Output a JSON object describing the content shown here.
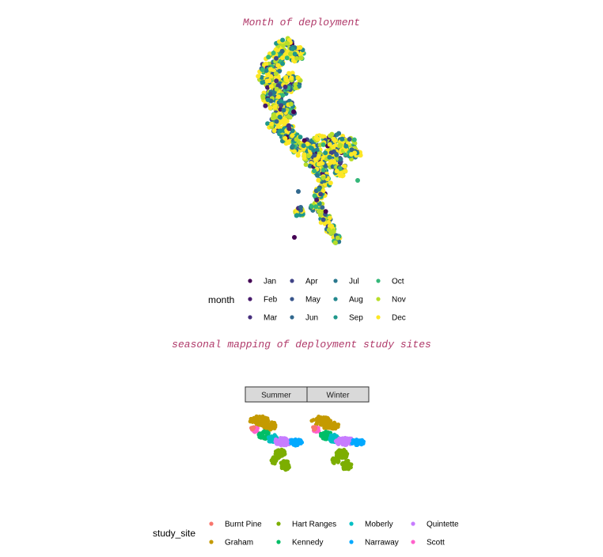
{
  "chart_data": [
    {
      "type": "scatter",
      "title": "Month of deployment",
      "legend_title": "month",
      "legend_position": "bottom",
      "grid": false,
      "series": [
        {
          "name": "Jan",
          "color": "#440154"
        },
        {
          "name": "Feb",
          "color": "#481A6C"
        },
        {
          "name": "Mar",
          "color": "#472F7D"
        },
        {
          "name": "Apr",
          "color": "#414487"
        },
        {
          "name": "May",
          "color": "#39568C"
        },
        {
          "name": "Jun",
          "color": "#31688E"
        },
        {
          "name": "Jul",
          "color": "#2A788E"
        },
        {
          "name": "Aug",
          "color": "#23888E"
        },
        {
          "name": "Sep",
          "color": "#1F988B"
        },
        {
          "name": "Oct",
          "color": "#35B779"
        },
        {
          "name": "Nov",
          "color": "#B8DE29"
        },
        {
          "name": "Dec",
          "color": "#FDE725"
        }
      ]
    },
    {
      "type": "scatter",
      "title": "seasonal mapping of deployment study sites",
      "facets": [
        "Summer",
        "Winter"
      ],
      "legend_title": "study_site",
      "legend_position": "bottom",
      "grid": false,
      "series": [
        {
          "name": "Burnt Pine",
          "color": "#F8766D"
        },
        {
          "name": "Graham",
          "color": "#C49A00"
        },
        {
          "name": "Hart Ranges",
          "color": "#7CAE00"
        },
        {
          "name": "Kennedy",
          "color": "#00BE67"
        },
        {
          "name": "Moberly",
          "color": "#00BFC4"
        },
        {
          "name": "Narraway",
          "color": "#00A9FF"
        },
        {
          "name": "Quintette",
          "color": "#C77CFF"
        },
        {
          "name": "Scott",
          "color": "#FF61CC"
        }
      ]
    }
  ]
}
